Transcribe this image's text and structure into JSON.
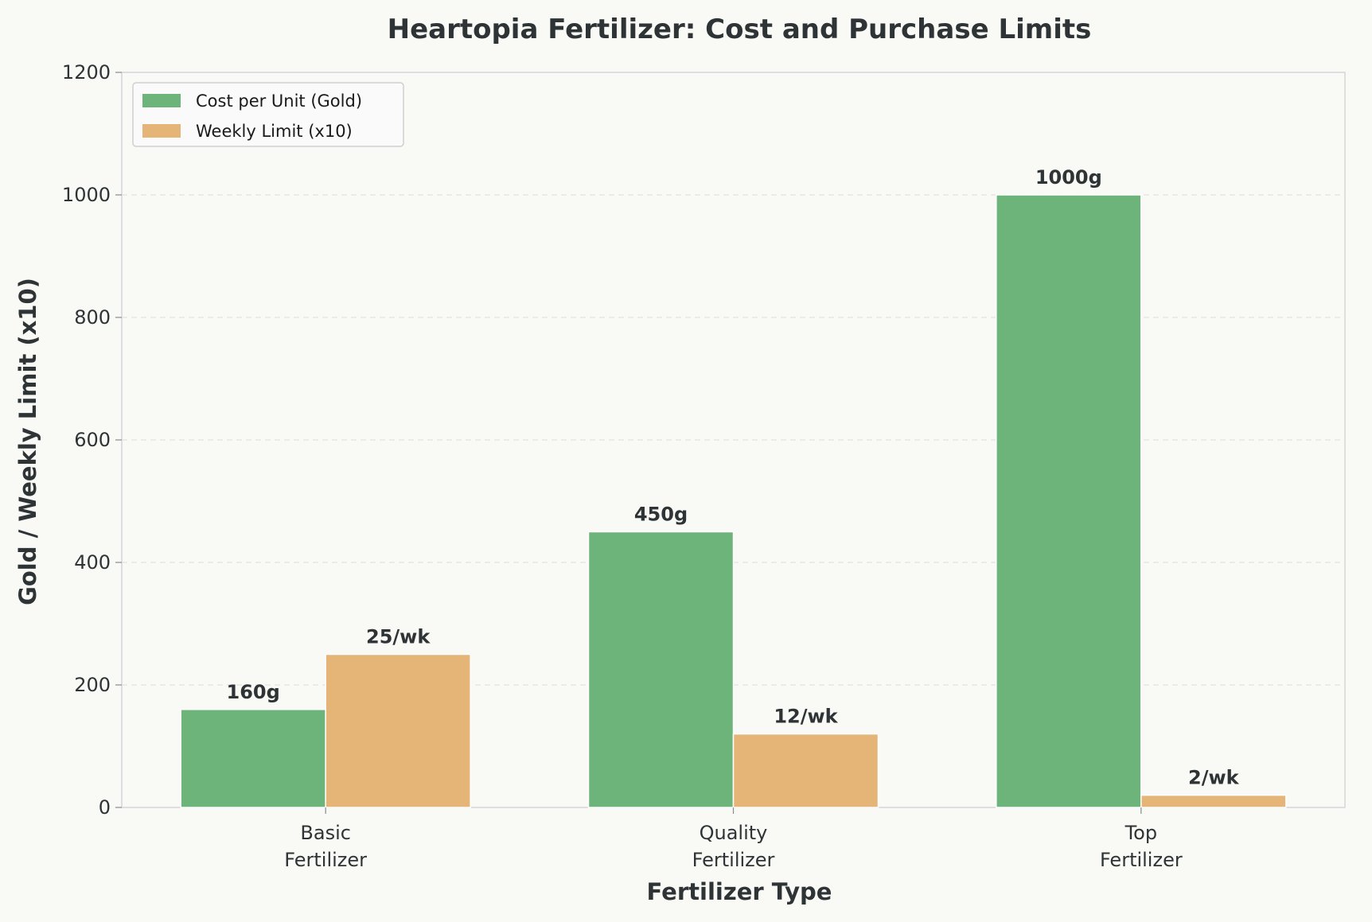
{
  "chart_data": {
    "type": "bar",
    "title": "Heartopia Fertilizer: Cost and Purchase Limits",
    "xlabel": "Fertilizer Type",
    "ylabel": "Gold / Weekly Limit (x10)",
    "ylim": [
      0,
      1200
    ],
    "yticks": [
      "0",
      "200",
      "400",
      "600",
      "800",
      "1000",
      "1200"
    ],
    "categories": [
      [
        "Basic",
        "Fertilizer"
      ],
      [
        "Quality",
        "Fertilizer"
      ],
      [
        "Top",
        "Fertilizer"
      ]
    ],
    "series": [
      {
        "name": "Cost per Unit (Gold)",
        "color": "#6db47b",
        "values": [
          160,
          450,
          1000
        ],
        "labels": [
          "160g",
          "450g",
          "1000g"
        ]
      },
      {
        "name": "Weekly Limit (x10)",
        "color": "#e5b578",
        "values": [
          250,
          120,
          20
        ],
        "labels": [
          "25/wk",
          "12/wk",
          "2/wk"
        ]
      }
    ],
    "grid": true,
    "legend_position": "top-left"
  },
  "colors": {
    "background": "#f9f9f6",
    "text": "#2e3436",
    "axis": "#d6d6dc",
    "grid": "#e3e3e3"
  }
}
